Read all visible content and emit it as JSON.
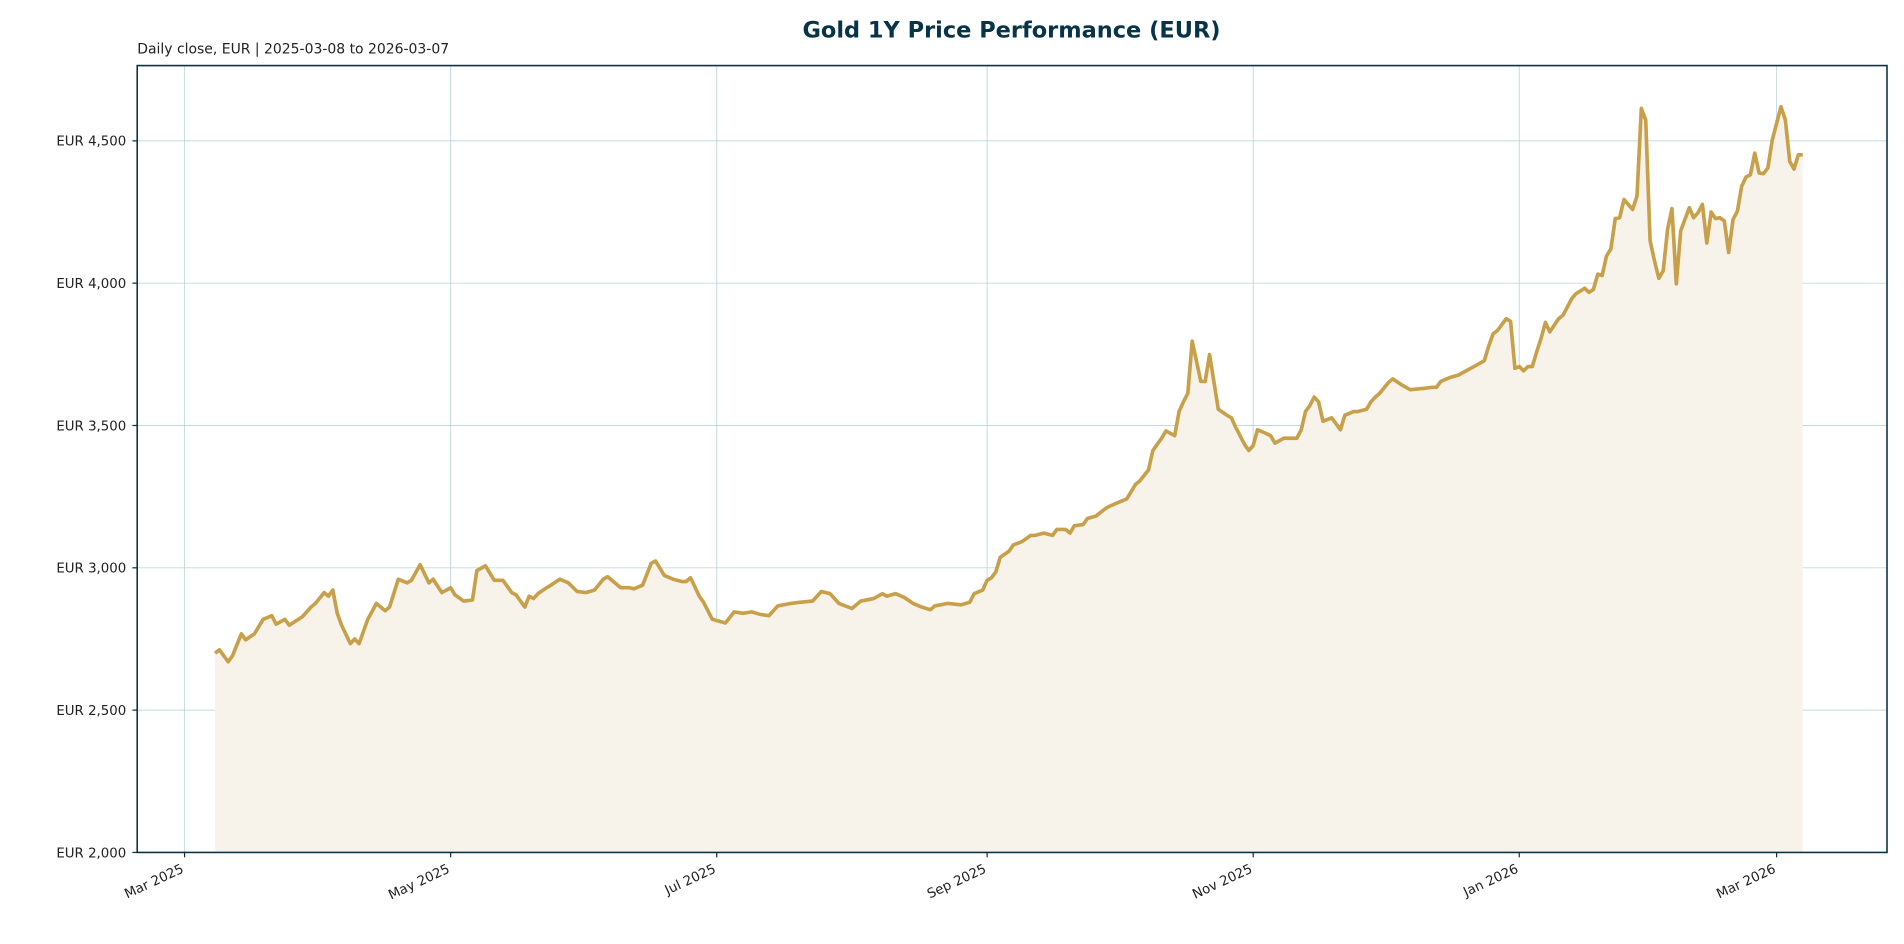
{
  "chart_data": {
    "type": "line",
    "title": "Gold 1Y Price Performance (EUR)",
    "subtitle": "Daily close, EUR | 2025-03-08 to 2026-03-07",
    "xlabel": "",
    "ylabel": "",
    "ylim": [
      2000,
      4760
    ],
    "xlim": [
      "2025-02-01",
      "2026-04-05"
    ],
    "grid": true,
    "colors": {
      "line": "#c8a04a",
      "fill": "#f7f3ea",
      "title": "#08344a",
      "axis": "#0b3142",
      "grid": "#b9d3dc"
    },
    "y_ticks": [
      {
        "value": 2000,
        "label": "EUR 2,000"
      },
      {
        "value": 2500,
        "label": "EUR 2,500"
      },
      {
        "value": 3000,
        "label": "EUR 3,000"
      },
      {
        "value": 3500,
        "label": "EUR 3,500"
      },
      {
        "value": 4000,
        "label": "EUR 4,000"
      },
      {
        "value": 4500,
        "label": "EUR 4,500"
      }
    ],
    "x_ticks": [
      {
        "date": "2025-03-01",
        "label": "Mar 2025"
      },
      {
        "date": "2025-05-01",
        "label": "May 2025"
      },
      {
        "date": "2025-07-01",
        "label": "Jul 2025"
      },
      {
        "date": "2025-09-01",
        "label": "Sep 2025"
      },
      {
        "date": "2025-11-01",
        "label": "Nov 2025"
      },
      {
        "date": "2026-01-01",
        "label": "Jan 2026"
      },
      {
        "date": "2026-03-01",
        "label": "Mar 2026"
      }
    ],
    "points": [
      [
        "2025-03-08",
        2700
      ],
      [
        "2025-03-09",
        2712
      ],
      [
        "2025-03-11",
        2670
      ],
      [
        "2025-03-12",
        2691
      ],
      [
        "2025-03-14",
        2768
      ],
      [
        "2025-03-15",
        2747
      ],
      [
        "2025-03-17",
        2768
      ],
      [
        "2025-03-19",
        2819
      ],
      [
        "2025-03-21",
        2832
      ],
      [
        "2025-03-22",
        2802
      ],
      [
        "2025-03-24",
        2819
      ],
      [
        "2025-03-25",
        2798
      ],
      [
        "2025-03-28",
        2828
      ],
      [
        "2025-03-30",
        2862
      ],
      [
        "2025-03-31",
        2875
      ],
      [
        "2025-04-02",
        2913
      ],
      [
        "2025-04-03",
        2900
      ],
      [
        "2025-04-04",
        2922
      ],
      [
        "2025-04-05",
        2841
      ],
      [
        "2025-04-06",
        2798
      ],
      [
        "2025-04-08",
        2734
      ],
      [
        "2025-04-09",
        2750
      ],
      [
        "2025-04-10",
        2734
      ],
      [
        "2025-04-12",
        2819
      ],
      [
        "2025-04-14",
        2875
      ],
      [
        "2025-04-16",
        2849
      ],
      [
        "2025-04-17",
        2862
      ],
      [
        "2025-04-19",
        2960
      ],
      [
        "2025-04-21",
        2947
      ],
      [
        "2025-04-22",
        2956
      ],
      [
        "2025-04-24",
        3011
      ],
      [
        "2025-04-26",
        2947
      ],
      [
        "2025-04-27",
        2960
      ],
      [
        "2025-04-29",
        2913
      ],
      [
        "2025-05-01",
        2930
      ],
      [
        "2025-05-02",
        2905
      ],
      [
        "2025-05-04",
        2883
      ],
      [
        "2025-05-06",
        2887
      ],
      [
        "2025-05-07",
        2990
      ],
      [
        "2025-05-09",
        3007
      ],
      [
        "2025-05-11",
        2956
      ],
      [
        "2025-05-13",
        2956
      ],
      [
        "2025-05-15",
        2913
      ],
      [
        "2025-05-16",
        2905
      ],
      [
        "2025-05-18",
        2862
      ],
      [
        "2025-05-19",
        2900
      ],
      [
        "2025-05-20",
        2892
      ],
      [
        "2025-05-21",
        2909
      ],
      [
        "2025-05-23",
        2930
      ],
      [
        "2025-05-24",
        2939
      ],
      [
        "2025-05-26",
        2960
      ],
      [
        "2025-05-28",
        2947
      ],
      [
        "2025-05-30",
        2917
      ],
      [
        "2025-06-01",
        2913
      ],
      [
        "2025-06-03",
        2922
      ],
      [
        "2025-06-05",
        2960
      ],
      [
        "2025-06-06",
        2969
      ],
      [
        "2025-06-09",
        2930
      ],
      [
        "2025-06-11",
        2930
      ],
      [
        "2025-06-12",
        2926
      ],
      [
        "2025-06-14",
        2939
      ],
      [
        "2025-06-16",
        3016
      ],
      [
        "2025-06-17",
        3024
      ],
      [
        "2025-06-19",
        2973
      ],
      [
        "2025-06-21",
        2960
      ],
      [
        "2025-06-23",
        2952
      ],
      [
        "2025-06-24",
        2952
      ],
      [
        "2025-06-25",
        2965
      ],
      [
        "2025-06-27",
        2900
      ],
      [
        "2025-06-28",
        2879
      ],
      [
        "2025-06-30",
        2819
      ],
      [
        "2025-07-01",
        2815
      ],
      [
        "2025-07-03",
        2806
      ],
      [
        "2025-07-05",
        2845
      ],
      [
        "2025-07-07",
        2840
      ],
      [
        "2025-07-09",
        2845
      ],
      [
        "2025-07-11",
        2836
      ],
      [
        "2025-07-13",
        2832
      ],
      [
        "2025-07-15",
        2866
      ],
      [
        "2025-07-18",
        2875
      ],
      [
        "2025-07-20",
        2879
      ],
      [
        "2025-07-23",
        2883
      ],
      [
        "2025-07-24",
        2900
      ],
      [
        "2025-07-25",
        2917
      ],
      [
        "2025-07-27",
        2909
      ],
      [
        "2025-07-29",
        2875
      ],
      [
        "2025-08-01",
        2857
      ],
      [
        "2025-08-03",
        2883
      ],
      [
        "2025-08-06",
        2892
      ],
      [
        "2025-08-08",
        2909
      ],
      [
        "2025-08-09",
        2900
      ],
      [
        "2025-08-11",
        2909
      ],
      [
        "2025-08-13",
        2896
      ],
      [
        "2025-08-15",
        2875
      ],
      [
        "2025-08-17",
        2862
      ],
      [
        "2025-08-19",
        2853
      ],
      [
        "2025-08-20",
        2866
      ],
      [
        "2025-08-23",
        2875
      ],
      [
        "2025-08-26",
        2870
      ],
      [
        "2025-08-28",
        2879
      ],
      [
        "2025-08-29",
        2909
      ],
      [
        "2025-08-31",
        2922
      ],
      [
        "2025-09-01",
        2956
      ],
      [
        "2025-09-02",
        2965
      ],
      [
        "2025-09-03",
        2986
      ],
      [
        "2025-09-04",
        3037
      ],
      [
        "2025-09-06",
        3058
      ],
      [
        "2025-09-07",
        3080
      ],
      [
        "2025-09-09",
        3092
      ],
      [
        "2025-09-11",
        3114
      ],
      [
        "2025-09-12",
        3114
      ],
      [
        "2025-09-14",
        3122
      ],
      [
        "2025-09-16",
        3114
      ],
      [
        "2025-09-17",
        3135
      ],
      [
        "2025-09-19",
        3135
      ],
      [
        "2025-09-20",
        3122
      ],
      [
        "2025-09-21",
        3148
      ],
      [
        "2025-09-23",
        3152
      ],
      [
        "2025-09-24",
        3173
      ],
      [
        "2025-09-26",
        3182
      ],
      [
        "2025-09-28",
        3207
      ],
      [
        "2025-09-29",
        3216
      ],
      [
        "2025-10-01",
        3229
      ],
      [
        "2025-10-03",
        3242
      ],
      [
        "2025-10-05",
        3293
      ],
      [
        "2025-10-06",
        3305
      ],
      [
        "2025-10-08",
        3344
      ],
      [
        "2025-10-09",
        3412
      ],
      [
        "2025-10-11",
        3455
      ],
      [
        "2025-10-12",
        3481
      ],
      [
        "2025-10-14",
        3464
      ],
      [
        "2025-10-15",
        3549
      ],
      [
        "2025-10-16",
        3583
      ],
      [
        "2025-10-17",
        3613
      ],
      [
        "2025-10-18",
        3796
      ],
      [
        "2025-10-20",
        3655
      ],
      [
        "2025-10-21",
        3655
      ],
      [
        "2025-10-22",
        3749
      ],
      [
        "2025-10-24",
        3557
      ],
      [
        "2025-10-26",
        3536
      ],
      [
        "2025-10-27",
        3527
      ],
      [
        "2025-10-28",
        3493
      ],
      [
        "2025-10-30",
        3434
      ],
      [
        "2025-10-31",
        3412
      ],
      [
        "2025-11-01",
        3429
      ],
      [
        "2025-11-02",
        3485
      ],
      [
        "2025-11-04",
        3472
      ],
      [
        "2025-11-05",
        3464
      ],
      [
        "2025-11-06",
        3438
      ],
      [
        "2025-11-08",
        3455
      ],
      [
        "2025-11-09",
        3455
      ],
      [
        "2025-11-11",
        3455
      ],
      [
        "2025-11-12",
        3485
      ],
      [
        "2025-11-13",
        3549
      ],
      [
        "2025-11-14",
        3570
      ],
      [
        "2025-11-15",
        3600
      ],
      [
        "2025-11-16",
        3583
      ],
      [
        "2025-11-17",
        3515
      ],
      [
        "2025-11-19",
        3527
      ],
      [
        "2025-11-21",
        3485
      ],
      [
        "2025-11-22",
        3536
      ],
      [
        "2025-11-24",
        3549
      ],
      [
        "2025-11-25",
        3549
      ],
      [
        "2025-11-27",
        3557
      ],
      [
        "2025-11-28",
        3583
      ],
      [
        "2025-11-29",
        3600
      ],
      [
        "2025-11-30",
        3613
      ],
      [
        "2025-12-02",
        3651
      ],
      [
        "2025-12-03",
        3664
      ],
      [
        "2025-12-05",
        3643
      ],
      [
        "2025-12-07",
        3626
      ],
      [
        "2025-12-10",
        3630
      ],
      [
        "2025-12-12",
        3634
      ],
      [
        "2025-12-13",
        3634
      ],
      [
        "2025-12-14",
        3655
      ],
      [
        "2025-12-16",
        3668
      ],
      [
        "2025-12-18",
        3677
      ],
      [
        "2025-12-19",
        3685
      ],
      [
        "2025-12-21",
        3702
      ],
      [
        "2025-12-23",
        3719
      ],
      [
        "2025-12-24",
        3728
      ],
      [
        "2025-12-25",
        3779
      ],
      [
        "2025-12-26",
        3822
      ],
      [
        "2025-12-27",
        3834
      ],
      [
        "2025-12-29",
        3875
      ],
      [
        "2025-12-30",
        3866
      ],
      [
        "2025-12-31",
        3701
      ],
      [
        "2026-01-01",
        3707
      ],
      [
        "2026-01-02",
        3692
      ],
      [
        "2026-01-03",
        3707
      ],
      [
        "2026-01-04",
        3707
      ],
      [
        "2026-01-05",
        3759
      ],
      [
        "2026-01-06",
        3806
      ],
      [
        "2026-01-07",
        3862
      ],
      [
        "2026-01-08",
        3829
      ],
      [
        "2026-01-10",
        3875
      ],
      [
        "2026-01-11",
        3887
      ],
      [
        "2026-01-13",
        3945
      ],
      [
        "2026-01-14",
        3963
      ],
      [
        "2026-01-16",
        3982
      ],
      [
        "2026-01-17",
        3968
      ],
      [
        "2026-01-18",
        3978
      ],
      [
        "2026-01-19",
        4032
      ],
      [
        "2026-01-20",
        4027
      ],
      [
        "2026-01-21",
        4096
      ],
      [
        "2026-01-22",
        4120
      ],
      [
        "2026-01-23",
        4227
      ],
      [
        "2026-01-24",
        4230
      ],
      [
        "2026-01-25",
        4294
      ],
      [
        "2026-01-27",
        4259
      ],
      [
        "2026-01-28",
        4306
      ],
      [
        "2026-01-29",
        4614
      ],
      [
        "2026-01-30",
        4573
      ],
      [
        "2026-01-31",
        4149
      ],
      [
        "2026-02-01",
        4079
      ],
      [
        "2026-02-02",
        4017
      ],
      [
        "2026-02-03",
        4044
      ],
      [
        "2026-02-04",
        4189
      ],
      [
        "2026-02-05",
        4262
      ],
      [
        "2026-02-06",
        3998
      ],
      [
        "2026-02-07",
        4184
      ],
      [
        "2026-02-08",
        4224
      ],
      [
        "2026-02-09",
        4265
      ],
      [
        "2026-02-10",
        4230
      ],
      [
        "2026-02-11",
        4248
      ],
      [
        "2026-02-12",
        4277
      ],
      [
        "2026-02-13",
        4141
      ],
      [
        "2026-02-14",
        4250
      ],
      [
        "2026-02-15",
        4227
      ],
      [
        "2026-02-16",
        4230
      ],
      [
        "2026-02-17",
        4219
      ],
      [
        "2026-02-18",
        4108
      ],
      [
        "2026-02-19",
        4224
      ],
      [
        "2026-02-20",
        4253
      ],
      [
        "2026-02-21",
        4341
      ],
      [
        "2026-02-22",
        4373
      ],
      [
        "2026-02-23",
        4381
      ],
      [
        "2026-02-24",
        4457
      ],
      [
        "2026-02-25",
        4387
      ],
      [
        "2026-02-26",
        4385
      ],
      [
        "2026-02-27",
        4405
      ],
      [
        "2026-02-28",
        4503
      ],
      [
        "2026-03-02",
        4620
      ],
      [
        "2026-03-03",
        4573
      ],
      [
        "2026-03-04",
        4428
      ],
      [
        "2026-03-05",
        4401
      ],
      [
        "2026-03-06",
        4451
      ],
      [
        "2026-03-07",
        4451
      ]
    ]
  }
}
